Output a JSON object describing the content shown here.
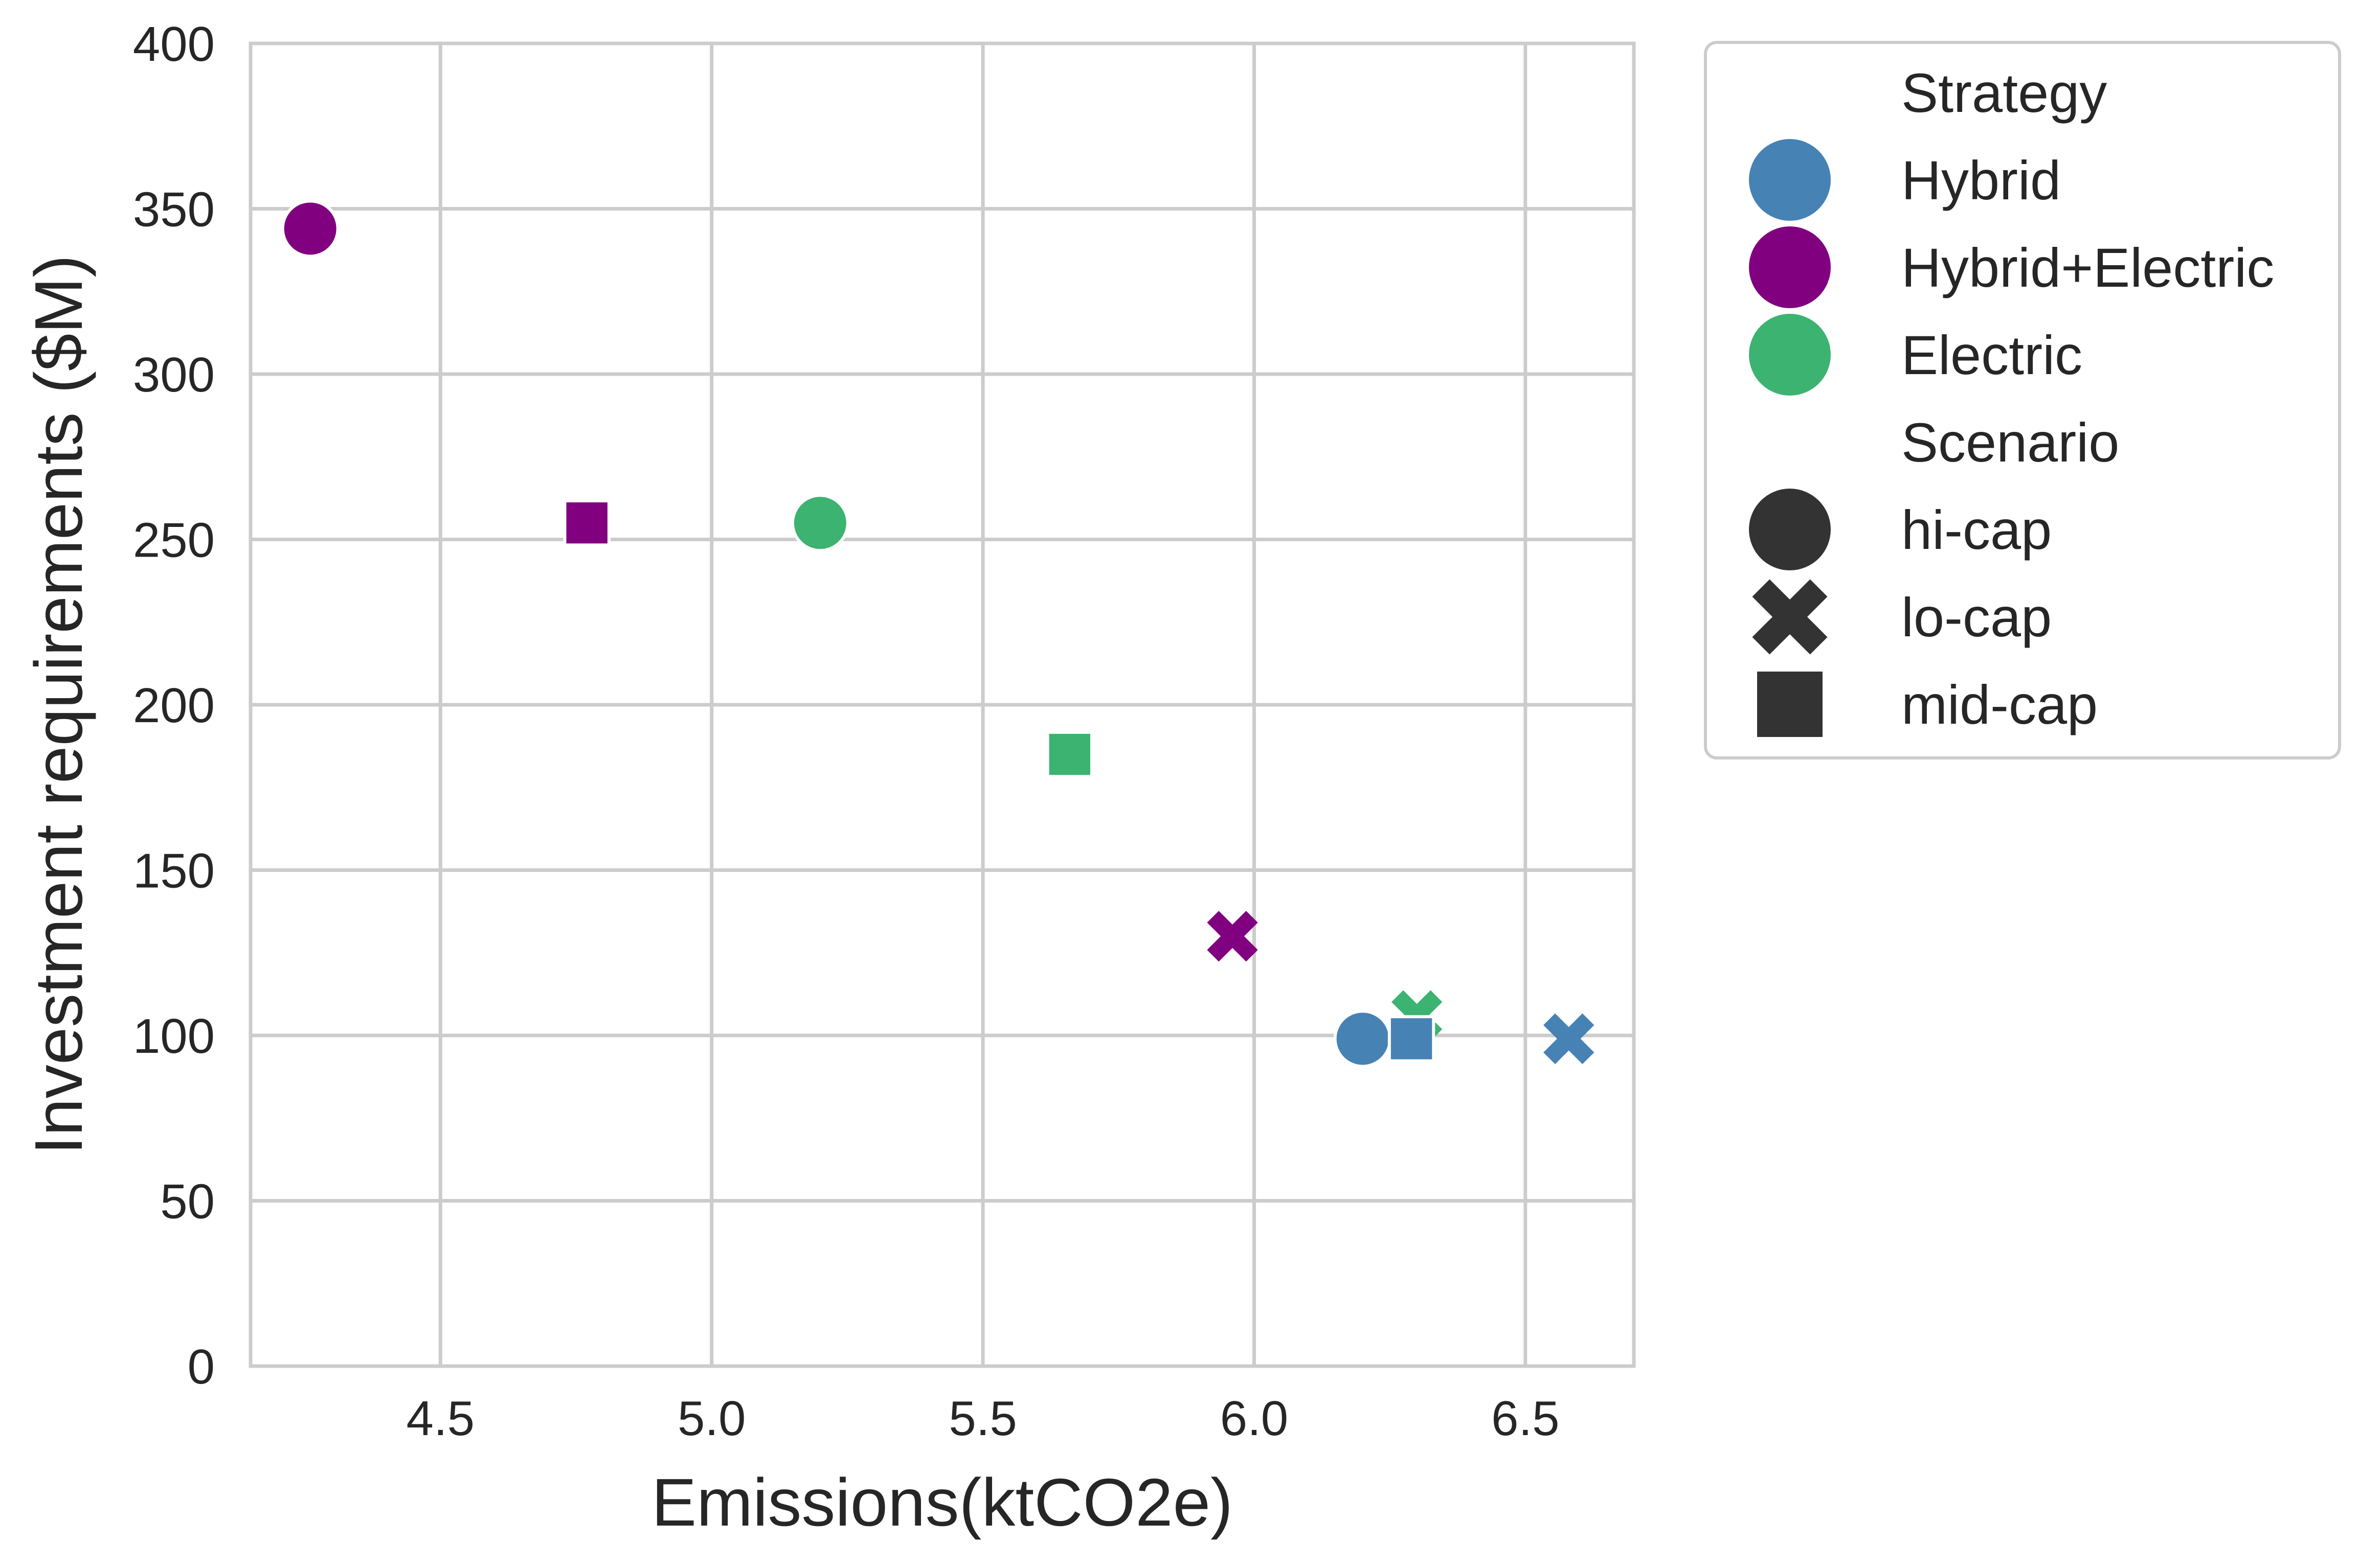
{
  "chart_data": {
    "type": "scatter",
    "title": "",
    "xlabel": "Emissions(ktCO2e)",
    "ylabel": "Investment requirements ($M)",
    "xlim": [
      4.15,
      6.7
    ],
    "ylim": [
      0,
      400
    ],
    "xticks": [
      4.5,
      5.0,
      5.5,
      6.0,
      6.5
    ],
    "xtick_labels": [
      "4.5",
      "5.0",
      "5.5",
      "6.0",
      "6.5"
    ],
    "yticks": [
      0,
      50,
      100,
      150,
      200,
      250,
      300,
      350,
      400
    ],
    "ytick_labels": [
      "0",
      "50",
      "100",
      "150",
      "200",
      "250",
      "300",
      "350",
      "400"
    ],
    "grid": true,
    "legend_placement": "outside right, top",
    "legend": {
      "hue_title": "Strategy",
      "style_title": "Scenario",
      "strategies": [
        {
          "name": "Hybrid",
          "color": "#4682b4"
        },
        {
          "name": "Hybrid+Electric",
          "color": "#800080"
        },
        {
          "name": "Electric",
          "color": "#3cb371"
        }
      ],
      "scenarios": [
        {
          "name": "hi-cap",
          "marker": "circle"
        },
        {
          "name": "lo-cap",
          "marker": "x"
        },
        {
          "name": "mid-cap",
          "marker": "square"
        }
      ],
      "marker_color": "#333333"
    },
    "points": [
      {
        "strategy": "Hybrid+Electric",
        "scenario": "hi-cap",
        "x": 4.26,
        "y": 344
      },
      {
        "strategy": "Hybrid+Electric",
        "scenario": "mid-cap",
        "x": 4.77,
        "y": 255
      },
      {
        "strategy": "Electric",
        "scenario": "hi-cap",
        "x": 5.2,
        "y": 255
      },
      {
        "strategy": "Electric",
        "scenario": "mid-cap",
        "x": 5.66,
        "y": 185
      },
      {
        "strategy": "Hybrid+Electric",
        "scenario": "lo-cap",
        "x": 5.96,
        "y": 130
      },
      {
        "strategy": "Electric",
        "scenario": "lo-cap",
        "x": 6.3,
        "y": 106
      },
      {
        "strategy": "Hybrid",
        "scenario": "hi-cap",
        "x": 6.2,
        "y": 99
      },
      {
        "strategy": "Hybrid",
        "scenario": "mid-cap",
        "x": 6.29,
        "y": 99
      },
      {
        "strategy": "Hybrid",
        "scenario": "lo-cap",
        "x": 6.58,
        "y": 99
      }
    ]
  }
}
